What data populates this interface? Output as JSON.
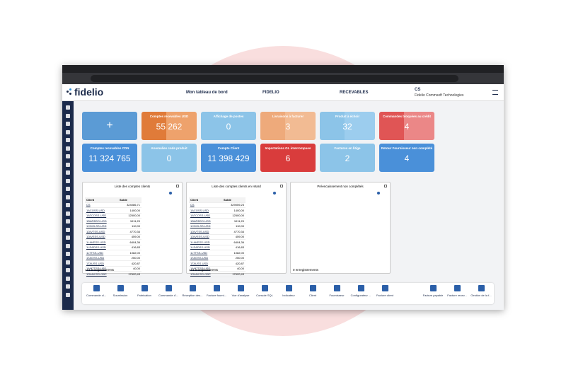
{
  "header": {
    "logo": "fidelio",
    "nav": [
      "Mon tableau de bord",
      "FIDELIO",
      "RECEVABLES"
    ],
    "user": "CS",
    "company": "Fidelio Commsoft Technologies"
  },
  "add_tile": "+",
  "tiles": [
    {
      "title": "Comptes recevables USD",
      "value": "55 262"
    },
    {
      "title": "Affichage de postes",
      "value": "0"
    },
    {
      "title": "Livraisons à facturer",
      "value": "3"
    },
    {
      "title": "Produit à échoir",
      "value": "32"
    },
    {
      "title": "Commandes bloquées au crédit",
      "value": "4"
    },
    {
      "title": "Comptes recevables CDN",
      "value": "11 324 765"
    },
    {
      "title": "Anomalies code produit",
      "value": "0"
    },
    {
      "title": "Compte Client",
      "value": "11 398 429"
    },
    {
      "title": "Importations GL interrompues",
      "value": "6"
    },
    {
      "title": "Factures en litige",
      "value": "2"
    },
    {
      "title": "Retour Fournisseur non complété",
      "value": "4"
    }
  ],
  "panels": [
    {
      "title": "Liste des comptes clients",
      "columns": [
        "Client",
        "Solde"
      ],
      "rows": [
        [
          "CS",
          "324086,71"
        ],
        [
          "1ACOSS-USD",
          "1400,00"
        ],
        [
          "1ATCOSS-USD",
          "12500,00"
        ],
        [
          "1BARBSO-USD",
          "1011,20"
        ],
        [
          "1CDOLSS-USD",
          "110,00"
        ],
        [
          "1DIVTSS-USD",
          "4770,34"
        ],
        [
          "1DIVESS-USD",
          "459,00"
        ],
        [
          "1LAKESS-USD",
          "6404,36"
        ],
        [
          "1LEADSS-USD",
          "416,83"
        ],
        [
          "1LTTSS-USD",
          "1082,00"
        ],
        [
          "1TAGSS-USD",
          "250,00"
        ],
        [
          "1TAUSS-USD",
          "420,87"
        ],
        [
          "1AMTTSS-USD",
          "40,00"
        ],
        [
          "1RANCSS-GBP",
          "17620,43"
        ]
      ],
      "footer": "171 enregistrements"
    },
    {
      "title": "Liste des comptes clients en retard",
      "columns": [
        "Client",
        "Solde"
      ],
      "rows": [
        [
          "CS",
          "329059,23"
        ],
        [
          "1ACOSS-USD",
          "1400,00"
        ],
        [
          "1ATCOSS-USD",
          "12500,00"
        ],
        [
          "1BARBSO-USD",
          "1011,20"
        ],
        [
          "1CDOLSS-USD",
          "110,00"
        ],
        [
          "1DIVTSS-USD",
          "4770,34"
        ],
        [
          "1DIVESS-USD",
          "459,00"
        ],
        [
          "1LAKESS-USD",
          "6404,36"
        ],
        [
          "1LEADSS-USD",
          "416,83"
        ],
        [
          "1LTTSS-USD",
          "1082,00"
        ],
        [
          "1TAGSS-USD",
          "250,00"
        ],
        [
          "1TAUSS-USD",
          "420,87"
        ],
        [
          "1AMTTSS-USD",
          "40,00"
        ],
        [
          "1RANCSS-GBP",
          "17620,43"
        ]
      ],
      "footer": "171 enregistrements"
    },
    {
      "title": "Préencaissement non complétés",
      "columns": [],
      "rows": [],
      "footer": "0 enregistrements"
    }
  ],
  "toolbar": [
    "Commande cl...",
    "Soumission",
    "Fabrication",
    "Commande d'...",
    "Réception des...",
    "Facture fourni...",
    "Vue d'analyse",
    "Console SQL",
    "Indicateur",
    "Client",
    "Fournisseur",
    "Configurateur ...",
    "Facture client",
    "Facture payable",
    "Facture recev...",
    "Gestion de la f..."
  ]
}
